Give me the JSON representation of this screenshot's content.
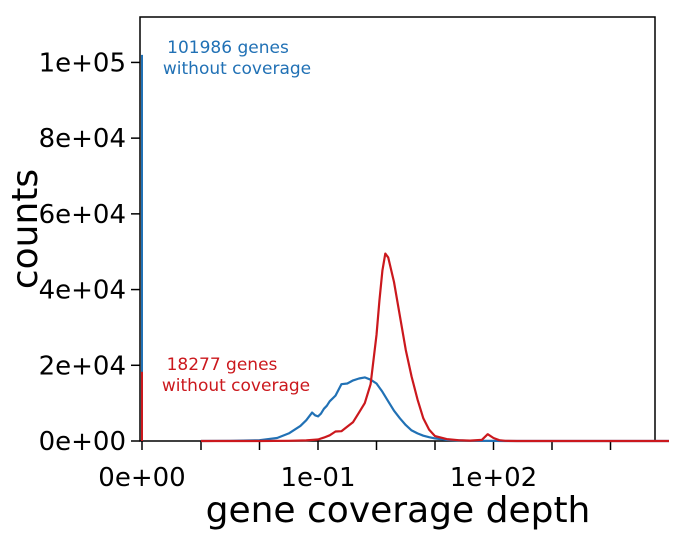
{
  "chart_data": {
    "type": "line",
    "title": "",
    "xlabel": "gene coverage depth",
    "ylabel": "counts",
    "x_scale": "symlog",
    "xlim": [
      0,
      100000
    ],
    "ylim": [
      0,
      112000
    ],
    "x_tick_labels": [
      "0e+00",
      "1e-01",
      "1e+02"
    ],
    "y_tick_labels": [
      "0e+00",
      "2e+04",
      "4e+04",
      "6e+04",
      "8e+04",
      "1e+05"
    ],
    "y_ticks": [
      0,
      20000,
      40000,
      60000,
      80000,
      100000
    ],
    "grid": false,
    "series": [
      {
        "name": "blue",
        "color": "#2171b5",
        "zero_count": 101986,
        "x_log10": [
          -3.0,
          -2.5,
          -2.0,
          -1.7,
          -1.5,
          -1.3,
          -1.2,
          -1.1,
          -1.05,
          -1.0,
          -0.95,
          -0.9,
          -0.85,
          -0.8,
          -0.7,
          -0.6,
          -0.5,
          -0.4,
          -0.3,
          -0.2,
          -0.1,
          0.0,
          0.1,
          0.2,
          0.3,
          0.4,
          0.5,
          0.6,
          0.7,
          0.8,
          0.9,
          1.0,
          1.1,
          1.2,
          1.4,
          1.6,
          1.8,
          2.0,
          2.2,
          2.5,
          3.0,
          3.5,
          4.0,
          4.5,
          5.0
        ],
        "y": [
          0,
          50,
          200,
          800,
          2000,
          4000,
          5500,
          7500,
          6800,
          6500,
          7200,
          8500,
          9300,
          10500,
          12000,
          15000,
          15200,
          16000,
          16500,
          16800,
          16200,
          15200,
          13000,
          10500,
          8000,
          6000,
          4200,
          2800,
          2000,
          1400,
          1000,
          700,
          500,
          300,
          150,
          80,
          40,
          20,
          10,
          5,
          0,
          0,
          0,
          0,
          0
        ]
      },
      {
        "name": "red",
        "color": "#cb181d",
        "zero_count": 18277,
        "x_log10": [
          -3.0,
          -2.0,
          -1.5,
          -1.2,
          -1.0,
          -0.9,
          -0.8,
          -0.7,
          -0.6,
          -0.5,
          -0.4,
          -0.3,
          -0.2,
          -0.1,
          0.0,
          0.05,
          0.1,
          0.15,
          0.2,
          0.3,
          0.4,
          0.5,
          0.6,
          0.7,
          0.8,
          0.9,
          1.0,
          1.2,
          1.4,
          1.6,
          1.8,
          1.9,
          2.0,
          2.1,
          2.2,
          2.4,
          2.6,
          3.0,
          3.5,
          4.0,
          4.5,
          5.0
        ],
        "y": [
          0,
          0,
          50,
          150,
          400,
          900,
          1500,
          2500,
          2600,
          3800,
          5000,
          7500,
          10000,
          15000,
          28000,
          37000,
          45000,
          49500,
          48500,
          42000,
          33000,
          24000,
          17000,
          11000,
          6000,
          3000,
          1300,
          500,
          200,
          100,
          300,
          1800,
          800,
          200,
          50,
          10,
          0,
          0,
          0,
          0,
          0,
          0
        ]
      }
    ],
    "annotations": [
      {
        "text": "101986 genes",
        "color": "#2171b5"
      },
      {
        "text": "without coverage",
        "color": "#2171b5"
      },
      {
        "text": "18277 genes",
        "color": "#cb181d"
      },
      {
        "text": "without coverage",
        "color": "#cb181d"
      }
    ]
  }
}
